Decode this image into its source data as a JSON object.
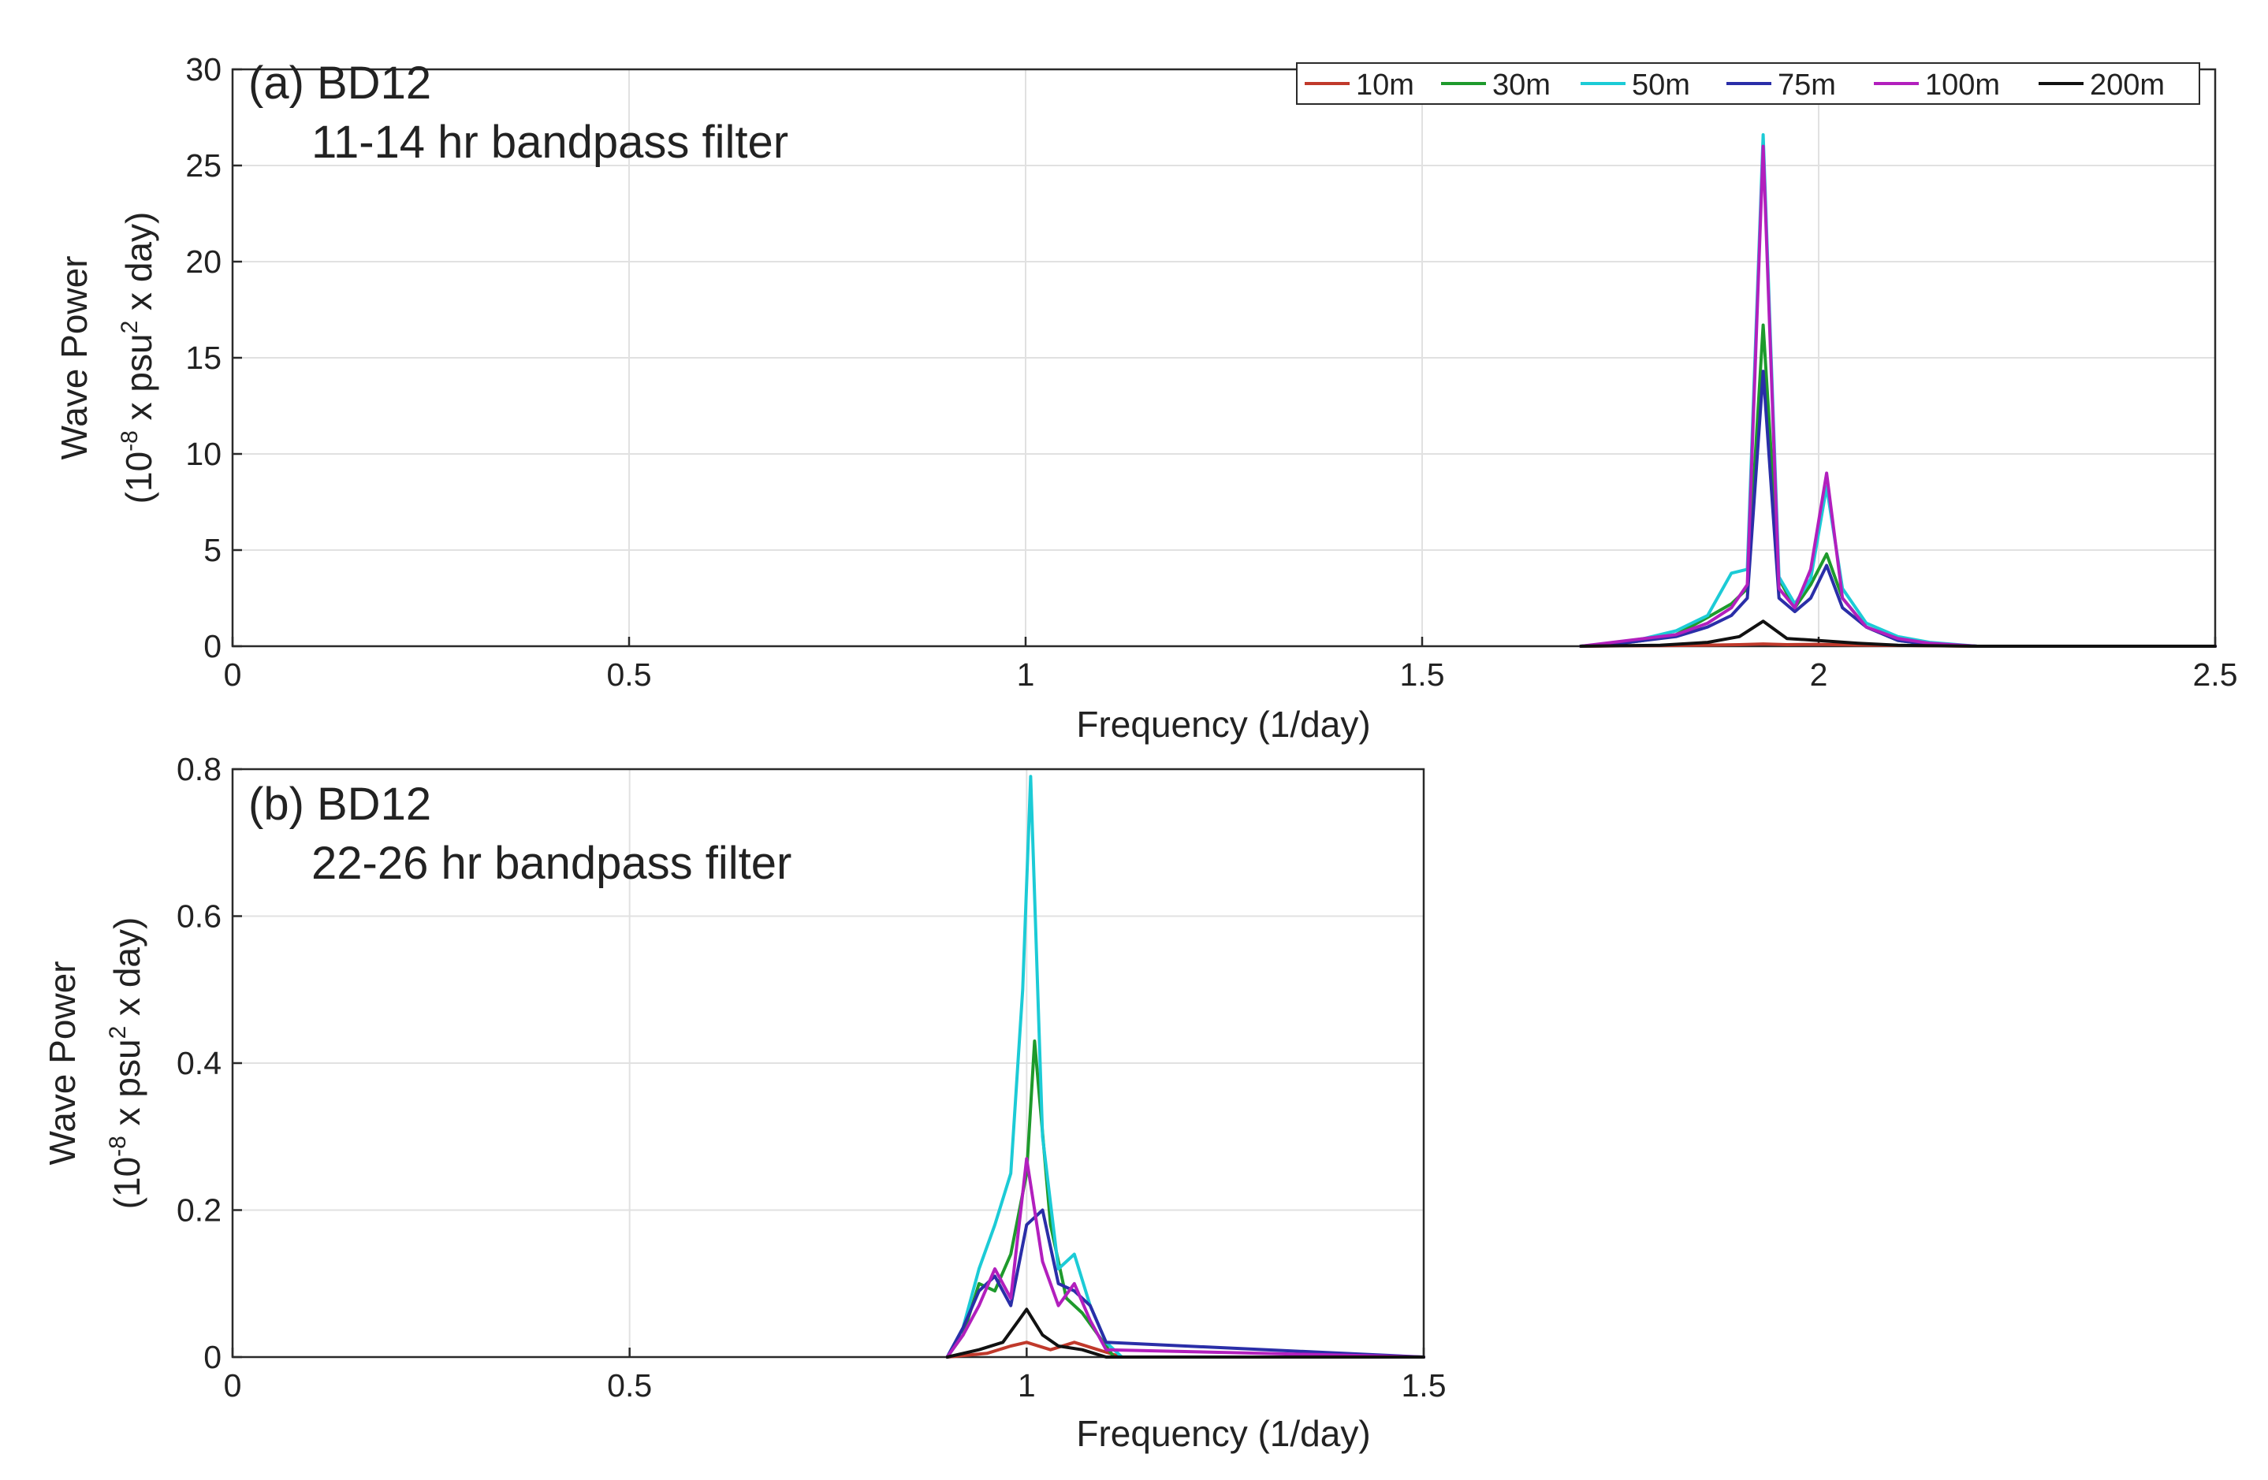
{
  "chart_data": [
    {
      "type": "line",
      "panel": "(a)",
      "title": "(a) BD12",
      "subtitle": "11-14 hr bandpass filter",
      "xlabel": "Frequency (1/day)",
      "ylabel_line1": "Wave Power",
      "ylabel_line2": {
        "pre": "(10",
        "sup1": "-8",
        "mid": " x psu",
        "sup2": "2",
        "post": " x day)"
      },
      "xlim": [
        0,
        2.5
      ],
      "ylim": [
        0,
        30
      ],
      "x_ticks": [
        0,
        0.5,
        1,
        1.5,
        2,
        2.5
      ],
      "x_tick_labels": [
        "0",
        "0.5",
        "1",
        "1.5",
        "2",
        "2.5"
      ],
      "y_ticks": [
        0,
        5,
        10,
        15,
        20,
        25,
        30
      ],
      "y_tick_labels": [
        "0",
        "5",
        "10",
        "15",
        "20",
        "25",
        "30"
      ],
      "grid": true,
      "legend_position": "top-right",
      "series": [
        {
          "name": "10m",
          "color": "#c0392b",
          "x": [
            1.7,
            1.75,
            1.8,
            1.85,
            1.9,
            1.93,
            1.96,
            2.0,
            2.05,
            2.1,
            2.15,
            2.2,
            2.5
          ],
          "y": [
            0,
            0.02,
            0.03,
            0.05,
            0.08,
            0.12,
            0.08,
            0.1,
            0.06,
            0.04,
            0.02,
            0,
            0
          ]
        },
        {
          "name": "30m",
          "color": "#1e9a2c",
          "x": [
            1.7,
            1.74,
            1.78,
            1.82,
            1.86,
            1.89,
            1.91,
            1.93,
            1.95,
            1.97,
            1.99,
            2.01,
            2.03,
            2.06,
            2.1,
            2.14,
            2.2,
            2.5
          ],
          "y": [
            0,
            0.1,
            0.3,
            0.6,
            1.5,
            2.2,
            3.0,
            16.7,
            3.5,
            2.0,
            3.2,
            4.8,
            2.5,
            1.0,
            0.3,
            0.1,
            0,
            0
          ]
        },
        {
          "name": "50m",
          "color": "#1ccbd6",
          "x": [
            1.7,
            1.74,
            1.78,
            1.82,
            1.86,
            1.89,
            1.91,
            1.93,
            1.95,
            1.97,
            1.99,
            2.01,
            2.03,
            2.06,
            2.1,
            2.14,
            2.2,
            2.5
          ],
          "y": [
            0,
            0.15,
            0.4,
            0.8,
            1.6,
            3.8,
            4.0,
            26.6,
            3.6,
            2.2,
            3.5,
            8.3,
            3.0,
            1.2,
            0.5,
            0.2,
            0,
            0
          ]
        },
        {
          "name": "75m",
          "color": "#2a2ea8",
          "x": [
            1.7,
            1.74,
            1.78,
            1.82,
            1.86,
            1.89,
            1.91,
            1.93,
            1.95,
            1.97,
            1.99,
            2.01,
            2.03,
            2.06,
            2.1,
            2.14,
            2.2,
            2.5
          ],
          "y": [
            0,
            0.1,
            0.3,
            0.5,
            1.0,
            1.6,
            2.5,
            14.3,
            2.5,
            1.8,
            2.5,
            4.2,
            2.0,
            1.0,
            0.3,
            0.1,
            0,
            0
          ]
        },
        {
          "name": "100m",
          "color": "#b21fbd",
          "x": [
            1.7,
            1.74,
            1.78,
            1.82,
            1.86,
            1.89,
            1.91,
            1.93,
            1.95,
            1.97,
            1.99,
            2.01,
            2.03,
            2.06,
            2.1,
            2.14,
            2.2,
            2.5
          ],
          "y": [
            0,
            0.2,
            0.4,
            0.6,
            1.2,
            2.0,
            3.2,
            26.0,
            3.0,
            2.0,
            4.0,
            9.0,
            2.5,
            1.0,
            0.4,
            0.15,
            0,
            0
          ]
        },
        {
          "name": "200m",
          "color": "#111111",
          "x": [
            1.7,
            1.8,
            1.86,
            1.9,
            1.93,
            1.96,
            2.0,
            2.05,
            2.1,
            2.2,
            2.5
          ],
          "y": [
            0,
            0.05,
            0.2,
            0.5,
            1.3,
            0.4,
            0.3,
            0.15,
            0.05,
            0,
            0
          ]
        }
      ]
    },
    {
      "type": "line",
      "panel": "(b)",
      "title": "(b) BD12",
      "subtitle": "22-26 hr bandpass filter",
      "xlabel": "Frequency (1/day)",
      "ylabel_line1": "Wave Power",
      "ylabel_line2": {
        "pre": "(10",
        "sup1": "-8",
        "mid": " x psu",
        "sup2": "2",
        "post": " x day)"
      },
      "xlim": [
        0,
        1.5
      ],
      "ylim": [
        0,
        0.8
      ],
      "x_ticks": [
        0,
        0.5,
        1,
        1.5
      ],
      "x_tick_labels": [
        "0",
        "0.5",
        "1",
        "1.5"
      ],
      "y_ticks": [
        0,
        0.2,
        0.4,
        0.6,
        0.8
      ],
      "y_tick_labels": [
        "0",
        "0.2",
        "0.4",
        "0.6",
        "0.8"
      ],
      "grid": true,
      "series": [
        {
          "name": "10m",
          "color": "#c0392b",
          "x": [
            0.9,
            0.95,
            0.98,
            1.0,
            1.03,
            1.06,
            1.09,
            1.12,
            1.5
          ],
          "y": [
            0,
            0.005,
            0.015,
            0.02,
            0.01,
            0.02,
            0.01,
            0,
            0
          ]
        },
        {
          "name": "30m",
          "color": "#1e9a2c",
          "x": [
            0.9,
            0.92,
            0.94,
            0.96,
            0.98,
            1.0,
            1.01,
            1.03,
            1.05,
            1.07,
            1.09,
            1.11,
            1.5
          ],
          "y": [
            0,
            0.03,
            0.1,
            0.09,
            0.14,
            0.25,
            0.43,
            0.18,
            0.08,
            0.06,
            0.03,
            0,
            0
          ]
        },
        {
          "name": "50m",
          "color": "#1ccbd6",
          "x": [
            0.9,
            0.92,
            0.94,
            0.96,
            0.98,
            0.995,
            1.005,
            1.02,
            1.04,
            1.06,
            1.08,
            1.1,
            1.12,
            1.5
          ],
          "y": [
            0,
            0.04,
            0.12,
            0.18,
            0.25,
            0.5,
            0.79,
            0.3,
            0.12,
            0.14,
            0.07,
            0.02,
            0,
            0
          ]
        },
        {
          "name": "75m",
          "color": "#2a2ea8",
          "x": [
            0.9,
            0.92,
            0.94,
            0.96,
            0.98,
            1.0,
            1.02,
            1.04,
            1.06,
            1.08,
            1.1,
            1.5
          ],
          "y": [
            0,
            0.04,
            0.09,
            0.11,
            0.07,
            0.18,
            0.2,
            0.1,
            0.09,
            0.07,
            0.02,
            0
          ]
        },
        {
          "name": "100m",
          "color": "#b21fbd",
          "x": [
            0.9,
            0.92,
            0.94,
            0.96,
            0.98,
            1.0,
            1.02,
            1.04,
            1.06,
            1.08,
            1.1,
            1.5
          ],
          "y": [
            0,
            0.03,
            0.07,
            0.12,
            0.08,
            0.27,
            0.13,
            0.07,
            0.1,
            0.05,
            0.01,
            0
          ]
        },
        {
          "name": "200m",
          "color": "#111111",
          "x": [
            0.9,
            0.94,
            0.97,
            0.99,
            1.0,
            1.02,
            1.04,
            1.07,
            1.1,
            1.5
          ],
          "y": [
            0,
            0.01,
            0.02,
            0.05,
            0.065,
            0.03,
            0.015,
            0.01,
            0,
            0
          ]
        }
      ]
    }
  ]
}
